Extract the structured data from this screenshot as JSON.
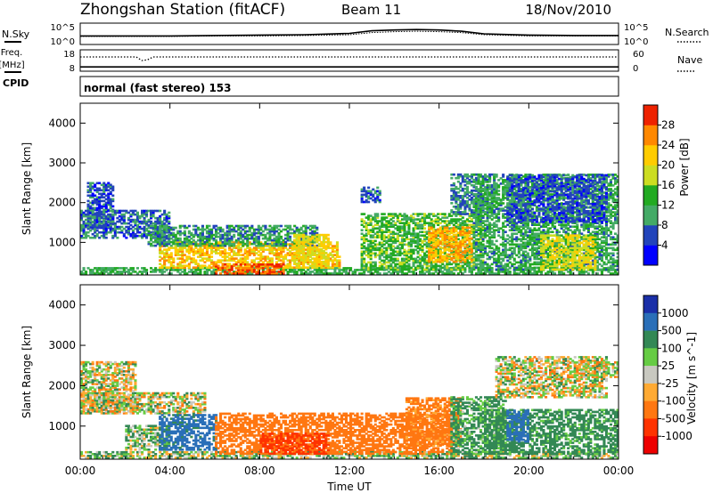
{
  "header": {
    "station": "Zhongshan Station (fitACF)",
    "beam": "Beam 11",
    "date": "18/Nov/2010",
    "mode": "normal (fast stereo) 153"
  },
  "left_labels": {
    "nsky": "N.Sky",
    "freq_line1": "Freq.",
    "freq_line2": "[MHz]",
    "cpid": "CPID"
  },
  "right_labels": {
    "nsearch": "N.Search",
    "nave": "Nave"
  },
  "chart_data": [
    {
      "type": "line",
      "name": "noise",
      "series": [
        {
          "name": "N.Sky",
          "x": [
            "00:00",
            "02:00",
            "04:00",
            "06:00",
            "08:00",
            "10:00",
            "12:00",
            "13:00",
            "14:00",
            "15:00",
            "16:00",
            "17:00",
            "18:00",
            "20:00",
            "22:00",
            "24:00"
          ],
          "values": [
            2.0,
            2.0,
            2.0,
            2.1,
            2.2,
            2.3,
            2.6,
            3.2,
            3.4,
            3.5,
            3.4,
            3.1,
            2.5,
            2.2,
            2.1,
            2.1
          ]
        },
        {
          "name": "N.Search",
          "x": [
            "00:00",
            "02:00",
            "04:00",
            "06:00",
            "08:00",
            "10:00",
            "12:00",
            "13:00",
            "14:00",
            "15:00",
            "16:00",
            "17:00",
            "18:00",
            "20:00",
            "22:00",
            "24:00"
          ],
          "values": [
            1.9,
            1.9,
            1.9,
            2.0,
            2.0,
            2.1,
            2.3,
            2.8,
            3.0,
            3.1,
            3.0,
            2.8,
            2.3,
            2.0,
            2.0,
            2.0
          ]
        }
      ],
      "yticks_left": [
        "10^5",
        "10^0"
      ],
      "yticks_right": [
        "10^5",
        "10^0"
      ]
    },
    {
      "type": "line",
      "name": "frequency",
      "series": [
        {
          "name": "Freq.",
          "x": [
            "00:00",
            "24:00"
          ],
          "values": [
            10.0,
            10.0
          ]
        },
        {
          "name": "Nave",
          "x": [
            "00:00",
            "02:30",
            "02:45",
            "03:00",
            "03:15",
            "24:00"
          ],
          "values": [
            40,
            40,
            30,
            32,
            40,
            40
          ]
        }
      ],
      "yticks_left": [
        "18",
        "8"
      ],
      "yticks_right": [
        "60",
        "0"
      ]
    },
    {
      "type": "heatmap",
      "name": "power",
      "ylabel": "Slant Range [km]",
      "yticks": [
        "1000",
        "2000",
        "3000",
        "4000"
      ],
      "xticks": [
        "00:00",
        "04:00",
        "08:00",
        "12:00",
        "16:00",
        "20:00",
        "00:00"
      ],
      "ylim": [
        180,
        4500
      ],
      "colorbar": {
        "label": "Power [dB]",
        "ticks": [
          "4",
          "8",
          "12",
          "16",
          "20",
          "24",
          "28"
        ],
        "colors": [
          "#0000ff",
          "#2244bb",
          "#44aa66",
          "#22aa22",
          "#ccdd22",
          "#ffcc00",
          "#ff8800",
          "#ee2200"
        ]
      },
      "regions": [
        {
          "t": [
            0.3,
            1.5
          ],
          "r": [
            1350,
            2500
          ],
          "v": 6
        },
        {
          "t": [
            0.0,
            4.0
          ],
          "r": [
            1100,
            1800
          ],
          "v": 7
        },
        {
          "t": [
            0.0,
            24.0
          ],
          "r": [
            200,
            380
          ],
          "v": 12
        },
        {
          "t": [
            3.5,
            11.5
          ],
          "r": [
            350,
            1000
          ],
          "v": 22
        },
        {
          "t": [
            3.0,
            10.5
          ],
          "r": [
            900,
            1400
          ],
          "v": 10
        },
        {
          "t": [
            6.0,
            9.0
          ],
          "r": [
            200,
            450
          ],
          "v": 29
        },
        {
          "t": [
            9.5,
            11.0
          ],
          "r": [
            450,
            1200
          ],
          "v": 20
        },
        {
          "t": [
            12.5,
            18.0
          ],
          "r": [
            300,
            1700
          ],
          "v": 14
        },
        {
          "t": [
            15.5,
            17.5
          ],
          "r": [
            500,
            1400
          ],
          "v": 24
        },
        {
          "t": [
            16.5,
            18.5
          ],
          "r": [
            1700,
            2700
          ],
          "v": 8
        },
        {
          "t": [
            17.5,
            24.0
          ],
          "r": [
            300,
            2700
          ],
          "v": 11
        },
        {
          "t": [
            19.0,
            23.5
          ],
          "r": [
            1500,
            2700
          ],
          "v": 6
        },
        {
          "t": [
            20.5,
            23.0
          ],
          "r": [
            300,
            1200
          ],
          "v": 19
        },
        {
          "t": [
            12.5,
            13.3
          ],
          "r": [
            2000,
            2400
          ],
          "v": 6
        }
      ]
    },
    {
      "type": "heatmap",
      "name": "velocity",
      "xlabel": "Time UT",
      "ylabel": "Slant Range [km]",
      "yticks": [
        "1000",
        "2000",
        "3000",
        "4000"
      ],
      "xticks": [
        "00:00",
        "04:00",
        "08:00",
        "12:00",
        "16:00",
        "20:00",
        "00:00"
      ],
      "ylim": [
        180,
        4500
      ],
      "colorbar": {
        "label": "Velocity [m s^-1]",
        "ticks": [
          "1000",
          "500",
          "100",
          "25",
          "-25",
          "-100",
          "-500",
          "-1000"
        ],
        "colors": [
          "#1a2fa8",
          "#2a6fb8",
          "#338855",
          "#66cc44",
          "#c8c8c0",
          "#ffaa33",
          "#ff7711",
          "#ff3300",
          "#ee0000"
        ]
      },
      "regions": [
        {
          "t": [
            0.0,
            2.5
          ],
          "r": [
            1350,
            2600
          ],
          "v": 0
        },
        {
          "t": [
            0.0,
            5.5
          ],
          "r": [
            1300,
            1800
          ],
          "v": 0
        },
        {
          "t": [
            0.0,
            24.0
          ],
          "r": [
            200,
            380
          ],
          "v": 60
        },
        {
          "t": [
            2.0,
            4.0
          ],
          "r": [
            400,
            1000
          ],
          "v": 80
        },
        {
          "t": [
            3.5,
            6.0
          ],
          "r": [
            400,
            1300
          ],
          "v": 600
        },
        {
          "t": [
            6.0,
            12.0
          ],
          "r": [
            300,
            1300
          ],
          "v": -300
        },
        {
          "t": [
            8.0,
            11.0
          ],
          "r": [
            300,
            800
          ],
          "v": -600
        },
        {
          "t": [
            12.0,
            16.5
          ],
          "r": [
            300,
            1300
          ],
          "v": -300
        },
        {
          "t": [
            14.5,
            17.0
          ],
          "r": [
            500,
            1700
          ],
          "v": -200
        },
        {
          "t": [
            16.5,
            19.0
          ],
          "r": [
            300,
            1700
          ],
          "v": 150
        },
        {
          "t": [
            18.0,
            24.0
          ],
          "r": [
            300,
            1400
          ],
          "v": 200
        },
        {
          "t": [
            19.0,
            20.0
          ],
          "r": [
            600,
            1400
          ],
          "v": 700
        },
        {
          "t": [
            18.5,
            23.5
          ],
          "r": [
            1700,
            2700
          ],
          "v": 0
        },
        {
          "t": [
            22.0,
            24.0
          ],
          "r": [
            2200,
            2600
          ],
          "v": 0
        }
      ]
    }
  ]
}
